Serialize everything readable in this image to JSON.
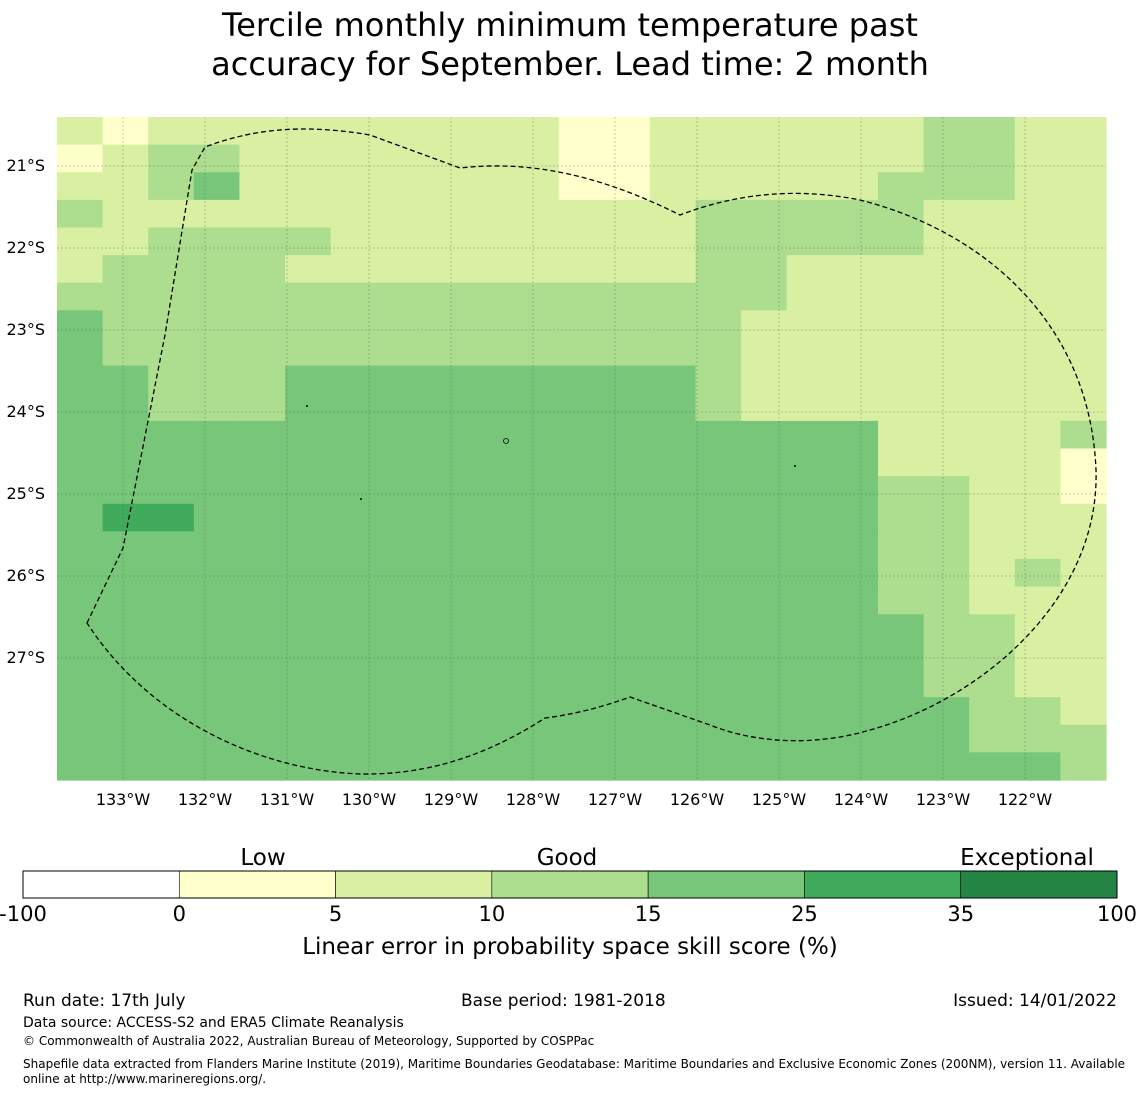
{
  "title": {
    "line1": "Tercile monthly minimum temperature past",
    "line2": "accuracy for September. Lead time: 2 month"
  },
  "map": {
    "lon_labels": [
      "133°W",
      "132°W",
      "131°W",
      "130°W",
      "129°W",
      "128°W",
      "127°W",
      "126°W",
      "125°W",
      "124°W",
      "123°W",
      "122°W"
    ],
    "lat_labels": [
      "21°S",
      "22°S",
      "23°S",
      "24°S",
      "25°S",
      "26°S",
      "27°S"
    ],
    "legend_levels": [
      "-100",
      "0",
      "5",
      "10",
      "15",
      "25",
      "35",
      "100"
    ],
    "colors": [
      "#ffffff",
      "#ffffcc",
      "#d9f0a3",
      "#addd8e",
      "#78c679",
      "#41ab5d",
      "#238443"
    ],
    "grid_codes": [
      "21222222222112222223322",
      "12332222222112222223322",
      "22342222222112222233322",
      "32222222222222333332222",
      "22333322222222333332222",
      "23333222222222332222222",
      "33333333333333332222222",
      "43333333333333322222222",
      "43333333333333322222222",
      "44333444444444322222222",
      "44333444444444322222222",
      "44444444444444444422223",
      "44444444444444444422221",
      "44444444444444444433221",
      "45544444444444444433222",
      "44444444444444444433222",
      "44444444444444444433232",
      "44444444444444444433222",
      "44444444444444444443322",
      "44444444444444444443322",
      "44444444444444444443322",
      "44444444444444444444332",
      "44444444444444444444333",
      "44444444444444444444443"
    ]
  },
  "legend": {
    "categories": [
      "Low",
      "Good",
      "Exceptional"
    ],
    "title": "Linear error in probability space skill score (%)"
  },
  "footer": {
    "run_date": "Run date: 17th July",
    "base_period": "Base period: 1981-2018",
    "issued": "Issued: 14/01/2022",
    "data_source": "Data source: ACCESS-S2 and ERA5 Climate Reanalysis",
    "copyright": "© Commonwealth of Australia 2022, Australian Bureau of Meteorology, Supported by COSPPac",
    "shapefile_line1": "Shapefile data extracted from Flanders Marine Institute (2019), Maritime Boundaries Geodatabase: Maritime Boundaries and Exclusive Economic Zones (200NM), version 11. Available",
    "shapefile_line2": "online at http://www.marineregions.org/."
  }
}
